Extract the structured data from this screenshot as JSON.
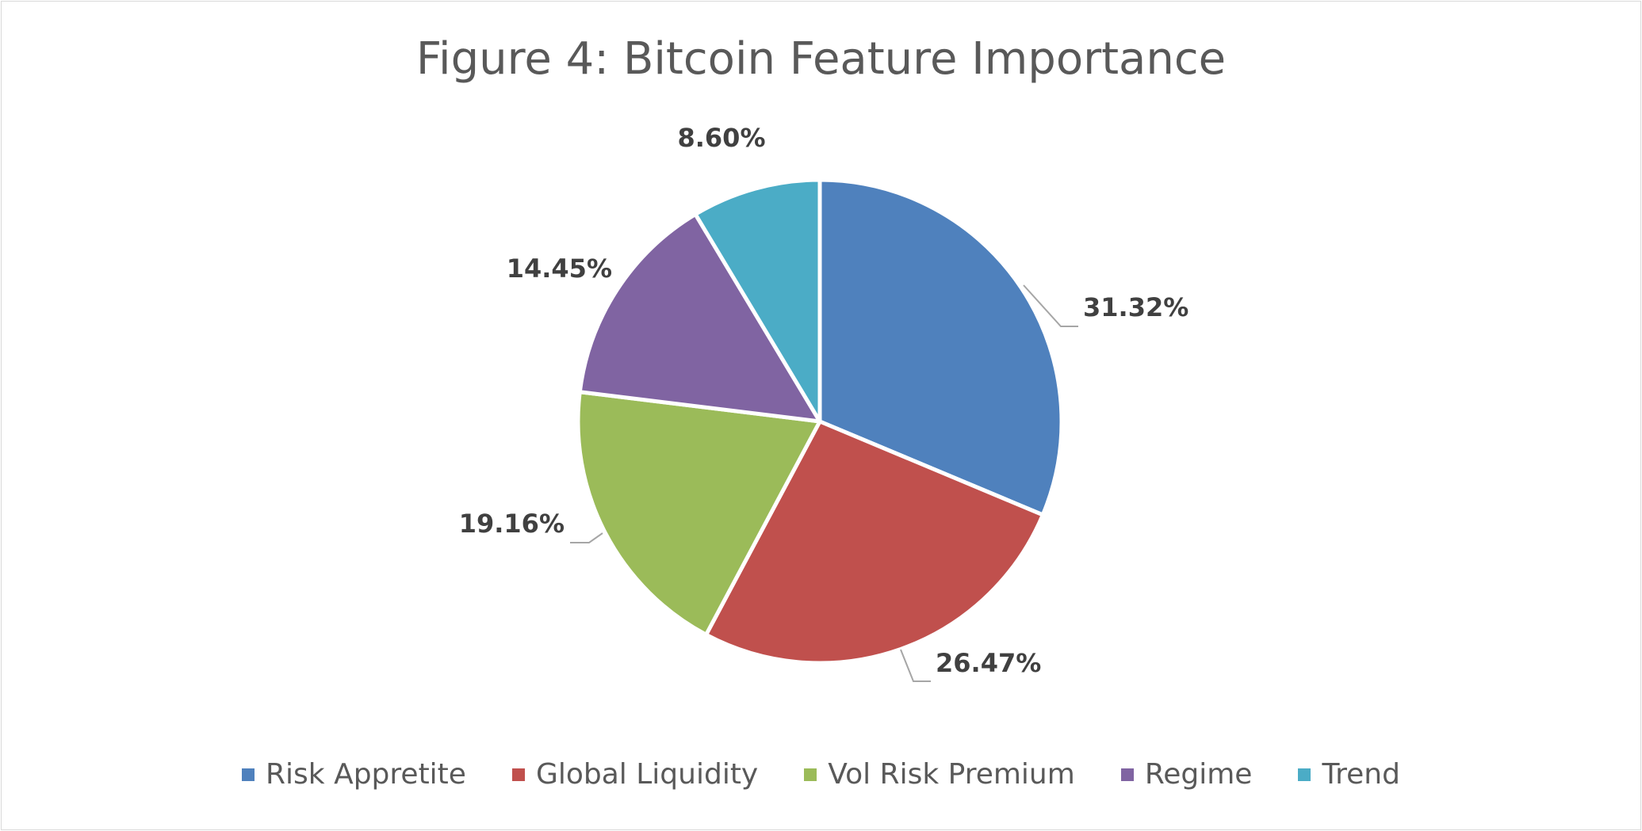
{
  "chart_data": {
    "type": "pie",
    "title": "Figure 4: Bitcoin Feature Importance",
    "slices": [
      {
        "name": "Risk Appretite",
        "value": 31.32,
        "label": "31.32%",
        "color": "#4f81bd"
      },
      {
        "name": "Global Liquidity",
        "value": 26.47,
        "label": "26.47%",
        "color": "#c0504d"
      },
      {
        "name": "Vol Risk Premium",
        "value": 19.16,
        "label": "19.16%",
        "color": "#9bbb59"
      },
      {
        "name": "Regime",
        "value": 14.45,
        "label": "14.45%",
        "color": "#8064a2"
      },
      {
        "name": "Trend",
        "value": 8.6,
        "label": "8.60%",
        "color": "#4bacc6"
      }
    ],
    "legend_position": "bottom",
    "start_angle_deg": 0,
    "direction": "clockwise"
  }
}
